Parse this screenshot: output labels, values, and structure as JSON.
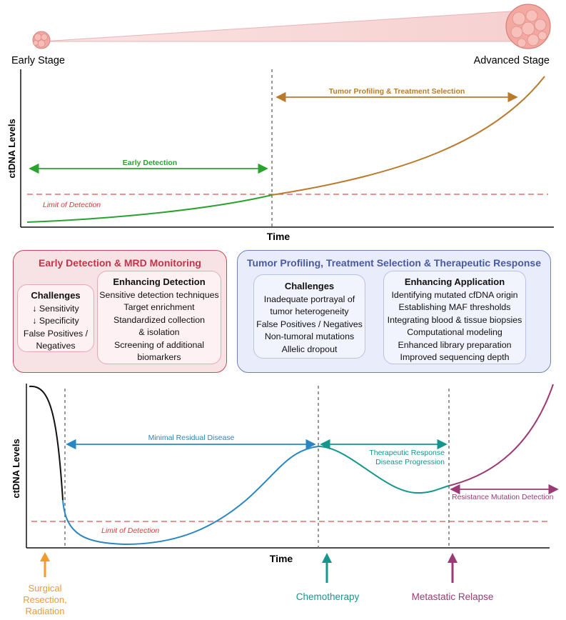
{
  "stage": {
    "early": "Early Stage",
    "advanced": "Advanced Stage"
  },
  "chart_top": {
    "ylabel": "ctDNA Levels",
    "xlabel": "Time",
    "early_detection": "Early Detection",
    "tumor_profiling": "Tumor Profiling & Treatment Selection",
    "limit": "Limit of Detection"
  },
  "red_box": {
    "title": "Early Detection & MRD Monitoring",
    "challenges": {
      "title": "Challenges",
      "items": [
        "↓ Sensitivity",
        "↓ Specificity",
        "False Positives /",
        "Negatives"
      ]
    },
    "enhancing": {
      "title": "Enhancing Detection",
      "items": [
        "Sensitive detection techniques",
        "Target enrichment",
        "Standardized collection",
        "& isolation",
        "Screening of additional",
        "biomarkers"
      ]
    }
  },
  "blue_box": {
    "title": "Tumor Profiling, Treatment Selection & Therapeutic Response",
    "challenges": {
      "title": "Challenges",
      "items": [
        "Inadequate portrayal of",
        "tumor heterogeneity",
        "False Positives / Negatives",
        "Non-tumoral mutations",
        "Allelic dropout"
      ]
    },
    "enhancing": {
      "title": "Enhancing Application",
      "items": [
        "Identifying mutated cfDNA origin",
        "Establishing MAF thresholds",
        "Integrating blood & tissue biopsies",
        "Computational modeling",
        "Enhanced library preparation",
        "Improved sequencing depth"
      ]
    }
  },
  "chart_bottom": {
    "ylabel": "ctDNA Levels",
    "xlabel": "Time",
    "mrd": "Minimal Residual Disease",
    "therapeutic": "Therapeutic Response",
    "progression": "Disease Progression",
    "resistance": "Resistance Mutation Detection",
    "limit": "Limit of Detection"
  },
  "events": {
    "surgical": [
      "Surgical",
      "Resection,",
      "Radiation"
    ],
    "chemo": "Chemotherapy",
    "relapse": "Metastatic Relapse"
  },
  "colors": {
    "green": "#2aa22f",
    "brown": "#b97a2c",
    "red_dash": "#e05050",
    "blue": "#2a86c2",
    "teal": "#14968d",
    "purple": "#9b3a75",
    "orange": "#f39a2b",
    "tumor_small": "#f2a9a5",
    "tumor_large": "#f3a9a2"
  }
}
